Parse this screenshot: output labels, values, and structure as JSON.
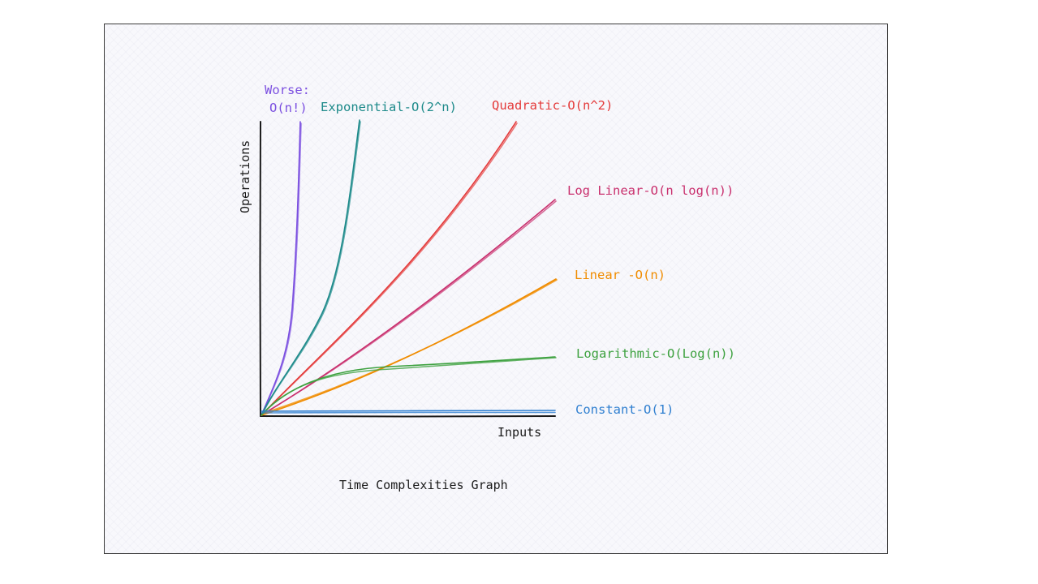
{
  "diagram": {
    "caption": "Time Complexities Graph",
    "y_axis_label": "Operations",
    "x_axis_label": "Inputs"
  },
  "curves": [
    {
      "id": "factorial",
      "label_lines": [
        "Worse:",
        "O(n!)"
      ],
      "color": "#7b4fe0"
    },
    {
      "id": "exponential",
      "label_lines": [
        "Exponential-O(2^n)"
      ],
      "color": "#1d8a8a"
    },
    {
      "id": "quadratic",
      "label_lines": [
        "Quadratic-O(n^2)"
      ],
      "color": "#e43a3a"
    },
    {
      "id": "loglinear",
      "label_lines": [
        "Log Linear-O(n log(n))"
      ],
      "color": "#c92f6d"
    },
    {
      "id": "linear",
      "label_lines": [
        "Linear -O(n)"
      ],
      "color": "#f08c00"
    },
    {
      "id": "logarithmic",
      "label_lines": [
        "Logarithmic-O(Log(n))"
      ],
      "color": "#3da13f"
    },
    {
      "id": "constant",
      "label_lines": [
        "Constant-O(1)"
      ],
      "color": "#2f7fd0"
    }
  ]
}
